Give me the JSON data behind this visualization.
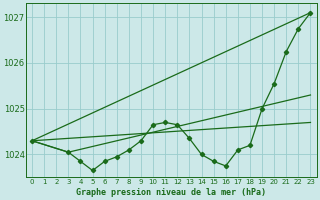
{
  "background_color": "#cce8e8",
  "grid_color": "#99cccc",
  "line_color": "#1a6b1a",
  "marker_color": "#1a6b1a",
  "title": "Graphe pression niveau de la mer (hPa)",
  "ylim": [
    1023.5,
    1027.3
  ],
  "yticks": [
    1024,
    1025,
    1026,
    1027
  ],
  "xlim": [
    -0.5,
    23.5
  ],
  "xticks": [
    0,
    1,
    2,
    3,
    4,
    5,
    6,
    7,
    8,
    9,
    10,
    11,
    12,
    13,
    14,
    15,
    16,
    17,
    18,
    19,
    20,
    21,
    22,
    23
  ],
  "series_main": {
    "x": [
      0,
      3,
      4,
      5,
      6,
      7,
      8,
      9,
      10,
      11,
      12,
      13,
      14,
      15,
      16,
      17,
      18,
      19,
      20,
      21,
      22,
      23
    ],
    "y": [
      1024.3,
      1024.05,
      1023.85,
      1023.65,
      1023.85,
      1023.95,
      1024.1,
      1024.3,
      1024.65,
      1024.7,
      1024.65,
      1024.35,
      1024.0,
      1023.85,
      1023.75,
      1024.1,
      1024.2,
      1025.0,
      1025.55,
      1026.25,
      1026.75,
      1027.1
    ]
  },
  "series_line1": {
    "comment": "straight line from (0,1024.3) to (23,1027.1)",
    "x": [
      0,
      23
    ],
    "y": [
      1024.3,
      1027.1
    ]
  },
  "series_line2": {
    "comment": "line from (0,1024.3) through (3,1024.05) to (23, ~1025.3)",
    "x": [
      0,
      3,
      23
    ],
    "y": [
      1024.3,
      1024.05,
      1025.3
    ]
  },
  "series_line3": {
    "comment": "line from (0,1024.3) to (23, ~1024.7)",
    "x": [
      0,
      23
    ],
    "y": [
      1024.3,
      1024.7
    ]
  }
}
